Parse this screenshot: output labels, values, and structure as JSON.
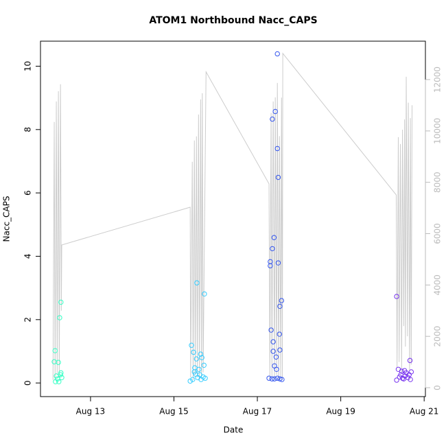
{
  "chart_data": {
    "type": "scatter",
    "title": "ATOM1 Northbound Nacc_CAPS",
    "x_label": "Date",
    "y_label": "Nacc_CAPS",
    "xlim": [
      11.8,
      21.03
    ],
    "xticks": [
      {
        "value": 13,
        "label": "Aug 13"
      },
      {
        "value": 15,
        "label": "Aug 15"
      },
      {
        "value": 17,
        "label": "Aug 17"
      },
      {
        "value": 19,
        "label": "Aug 19"
      },
      {
        "value": 21,
        "label": "Aug 21"
      }
    ],
    "ylim": [
      -0.43,
      10.79
    ],
    "yticks": [
      0,
      2,
      4,
      6,
      8,
      10
    ],
    "y2lim": [
      -347,
      13497
    ],
    "y2ticks": [
      0,
      2000,
      4000,
      6000,
      8000,
      10000,
      12000
    ],
    "series": [
      {
        "type": "line",
        "axis": "y2",
        "color": "#cccccc",
        "x": [
          12.1,
          12.13,
          12.15,
          12.18,
          12.2,
          12.23,
          12.25,
          12.28,
          12.3,
          12.31,
          15.39,
          15.4,
          15.44,
          15.46,
          15.49,
          15.51,
          15.54,
          15.56,
          15.59,
          15.61,
          15.64,
          15.66,
          15.68,
          15.7,
          15.77,
          17.28,
          17.3,
          17.33,
          17.35,
          17.38,
          17.41,
          17.43,
          17.46,
          17.48,
          17.51,
          17.53,
          17.56,
          17.58,
          17.6,
          17.61,
          20.33,
          20.35,
          20.38,
          20.4,
          20.43,
          20.46,
          20.48,
          20.51,
          20.53,
          20.55,
          20.57,
          20.6,
          20.62,
          20.65,
          20.67,
          20.69,
          20.71
        ],
        "values": [
          300,
          10350,
          300,
          11150,
          500,
          11550,
          400,
          11820,
          3000,
          5560,
          7030,
          400,
          8800,
          300,
          9630,
          500,
          9790,
          400,
          10640,
          300,
          11230,
          400,
          11470,
          600,
          12300,
          7940,
          300,
          10700,
          400,
          11150,
          300,
          11310,
          500,
          11870,
          300,
          9800,
          400,
          11300,
          300,
          13020,
          7510,
          800,
          9760,
          1000,
          9490,
          600,
          10050,
          2400,
          10450,
          1600,
          12110,
          2000,
          11100,
          700,
          10500,
          900,
          11000
        ]
      },
      {
        "color": "#33ffc4",
        "x": [
          12.15,
          12.13,
          12.23,
          12.26,
          12.29,
          12.18,
          12.21,
          12.24,
          12.28,
          12.31,
          12.16,
          12.29
        ],
        "values": [
          1.02,
          0.67,
          0.65,
          2.06,
          2.55,
          0.22,
          0.13,
          0.04,
          0.26,
          0.17,
          0.04,
          0.32
        ]
      },
      {
        "color": "#33ccff",
        "x": [
          15.42,
          15.55,
          15.73,
          15.47,
          15.54,
          15.64,
          15.67,
          15.72,
          15.6,
          15.5,
          15.39,
          15.45,
          15.52,
          15.57,
          15.65,
          15.7,
          15.75,
          15.49,
          15.62
        ],
        "values": [
          1.19,
          3.16,
          2.81,
          0.97,
          0.76,
          0.91,
          0.8,
          0.56,
          0.43,
          0.48,
          0.06,
          0.11,
          0.28,
          0.17,
          0.11,
          0.19,
          0.15,
          0.35,
          0.26
        ]
      },
      {
        "color": "#3355ee",
        "x": [
          17.48,
          17.43,
          17.36,
          17.48,
          17.5,
          17.4,
          17.36,
          17.31,
          17.31,
          17.5,
          17.58,
          17.54,
          17.33,
          17.53,
          17.38,
          17.54,
          17.38,
          17.45,
          17.41,
          17.46,
          17.28,
          17.35,
          17.41,
          17.48,
          17.54,
          17.59
        ],
        "values": [
          10.39,
          8.57,
          8.33,
          7.4,
          6.49,
          4.59,
          4.24,
          3.83,
          3.7,
          3.79,
          2.6,
          2.42,
          1.67,
          1.54,
          1.3,
          1.04,
          1.0,
          0.82,
          0.54,
          0.43,
          0.15,
          0.13,
          0.13,
          0.15,
          0.13,
          0.11
        ]
      },
      {
        "color": "#7733ee",
        "x": [
          20.34,
          20.66,
          20.38,
          20.46,
          20.53,
          20.57,
          20.34,
          20.41,
          20.48,
          20.54,
          20.61,
          20.67,
          20.44,
          20.51,
          20.64,
          20.69
        ],
        "values": [
          2.73,
          0.71,
          0.43,
          0.37,
          0.39,
          0.32,
          0.09,
          0.19,
          0.15,
          0.22,
          0.17,
          0.11,
          0.26,
          0.13,
          0.26,
          0.35
        ]
      }
    ]
  }
}
